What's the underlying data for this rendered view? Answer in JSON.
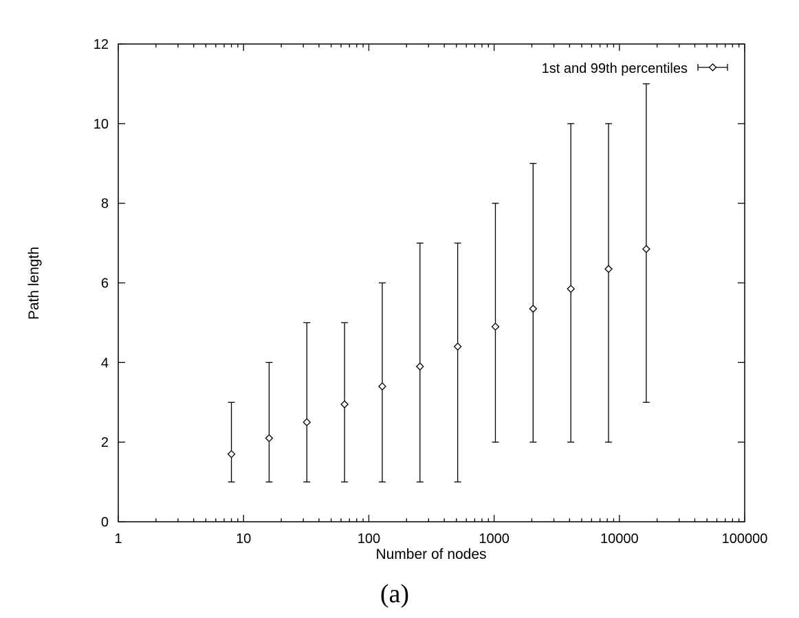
{
  "chart_data": {
    "type": "scatter",
    "title": "",
    "xlabel": "Number of nodes",
    "ylabel": "Path length",
    "xscale": "log",
    "xlim": [
      1,
      100000
    ],
    "ylim": [
      0,
      12
    ],
    "xticks": [
      "1",
      "10",
      "100",
      "1000",
      "10000",
      "100000"
    ],
    "yticks": [
      "0",
      "2",
      "4",
      "6",
      "8",
      "10",
      "12"
    ],
    "grid": false,
    "legend_position": "top-right",
    "series": [
      {
        "name": "1st and 99th percentiles",
        "marker": "diamond",
        "points": [
          {
            "x": 8,
            "y": 1.7,
            "low": 1,
            "high": 3
          },
          {
            "x": 16,
            "y": 2.1,
            "low": 1,
            "high": 4
          },
          {
            "x": 32,
            "y": 2.5,
            "low": 1,
            "high": 5
          },
          {
            "x": 64,
            "y": 2.95,
            "low": 1,
            "high": 5
          },
          {
            "x": 128,
            "y": 3.4,
            "low": 1,
            "high": 6
          },
          {
            "x": 256,
            "y": 3.9,
            "low": 1,
            "high": 7
          },
          {
            "x": 512,
            "y": 4.4,
            "low": 1,
            "high": 7
          },
          {
            "x": 1024,
            "y": 4.9,
            "low": 2,
            "high": 8
          },
          {
            "x": 2048,
            "y": 5.35,
            "low": 2,
            "high": 9
          },
          {
            "x": 4096,
            "y": 5.85,
            "low": 2,
            "high": 10
          },
          {
            "x": 8192,
            "y": 6.35,
            "low": 2,
            "high": 10
          },
          {
            "x": 16384,
            "y": 6.85,
            "low": 3,
            "high": 11
          }
        ]
      }
    ]
  },
  "caption": "(a)"
}
